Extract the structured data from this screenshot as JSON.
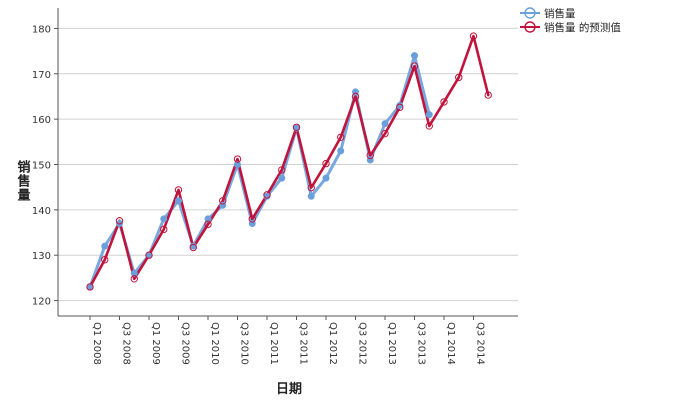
{
  "chart_data": {
    "type": "line",
    "xlabel": "日期",
    "ylabel": "销售量",
    "ylim": [
      116.6,
      184.5
    ],
    "yticks": [
      120,
      130,
      140,
      150,
      160,
      170,
      180
    ],
    "grid": "horizontal",
    "legend_position": "top-right",
    "x": [
      "Q1 2008",
      "Q2 2008",
      "Q3 2008",
      "Q4 2008",
      "Q1 2009",
      "Q2 2009",
      "Q3 2009",
      "Q4 2009",
      "Q1 2010",
      "Q2 2010",
      "Q3 2010",
      "Q4 2010",
      "Q1 2011",
      "Q2 2011",
      "Q3 2011",
      "Q4 2011",
      "Q1 2012",
      "Q2 2012",
      "Q3 2012",
      "Q4 2012",
      "Q1 2013",
      "Q2 2013",
      "Q3 2013",
      "Q4 2013",
      "Q1 2014",
      "Q2 2014",
      "Q3 2014",
      "Q4 2014"
    ],
    "xtick_labels": [
      "Q1 2008",
      "Q3 2008",
      "Q1 2009",
      "Q3 2009",
      "Q1 2010",
      "Q3 2010",
      "Q1 2011",
      "Q3 2011",
      "Q1 2012",
      "Q3 2012",
      "Q1 2013",
      "Q3 2013",
      "Q1 2014",
      "Q3 2014"
    ],
    "series": [
      {
        "name": "销售量",
        "color": "#6a9fdc",
        "values": [
          123,
          132,
          137,
          126,
          130,
          138,
          142,
          132,
          138,
          141,
          150,
          137,
          143,
          147,
          158,
          143,
          147,
          153,
          166,
          151,
          159,
          163,
          174,
          161,
          null,
          null,
          null,
          null
        ]
      },
      {
        "name": "销售量 的预测值",
        "color": "#c0143c",
        "values": [
          123,
          129,
          137.6,
          124.8,
          130,
          135.7,
          144.4,
          131.7,
          136.8,
          142,
          151.2,
          138,
          143.3,
          148.8,
          158.2,
          144.9,
          150.2,
          156,
          165,
          152,
          156.8,
          162.6,
          171.7,
          158.5,
          163.8,
          169.2,
          178.3,
          165.3
        ]
      }
    ]
  }
}
